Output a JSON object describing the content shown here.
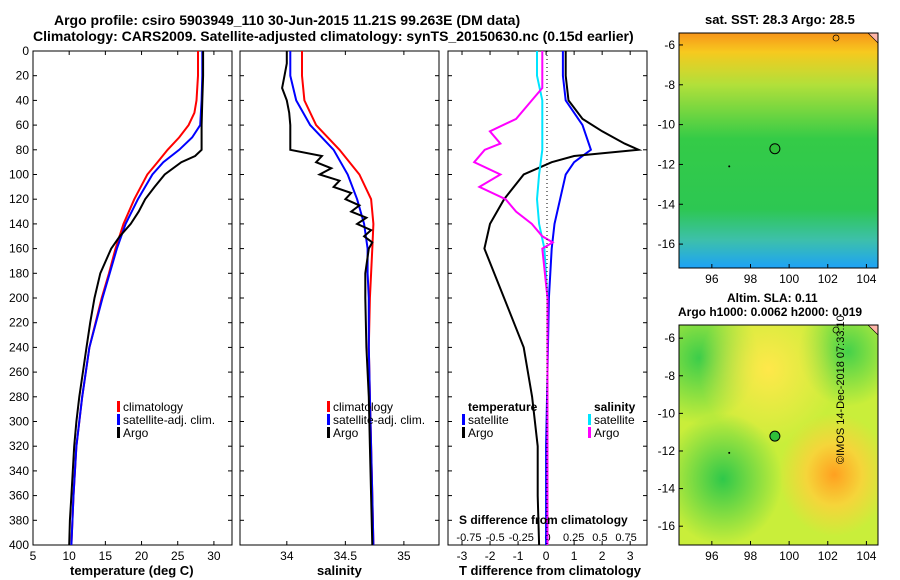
{
  "header": {
    "line1": "Argo profile: csiro 5903949_110 30-Jun-2015 11.21S 99.263E (DM data)",
    "line2": "Climatology: CARS2009. Satellite-adjusted climatology: synTS_20150630.nc (0.15d earlier)"
  },
  "depth_axis": {
    "ticks": [
      "0",
      "20",
      "40",
      "60",
      "80",
      "100",
      "120",
      "140",
      "160",
      "180",
      "200",
      "220",
      "240",
      "260",
      "280",
      "300",
      "320",
      "340",
      "360",
      "380",
      "400"
    ]
  },
  "colors": {
    "climatology": "#ff0000",
    "satellite": "#0000ff",
    "argo": "#000000",
    "sat_diff_s": "#00e5ff",
    "argo_diff_s": "#ff00ff"
  },
  "chart_data": [
    {
      "type": "line",
      "id": "temperature",
      "xlabel": "temperature (deg C)",
      "ylabel": "",
      "xlim": [
        5,
        32.5
      ],
      "ylim": [
        400,
        0
      ],
      "xticks": [
        5,
        10,
        15,
        20,
        25,
        30
      ],
      "xtick_labels": [
        "5",
        "10",
        "15",
        "20",
        "25",
        "30"
      ],
      "legend": [
        "climatology",
        "satellite-adj. clim.",
        "Argo"
      ],
      "series": [
        {
          "name": "climatology",
          "color": "#ff0000",
          "depth": [
            0,
            20,
            40,
            50,
            60,
            70,
            80,
            90,
            100,
            120,
            140,
            160,
            180,
            200,
            240,
            280,
            320,
            360,
            400
          ],
          "values": [
            27.8,
            27.8,
            27.6,
            27.3,
            26.5,
            25.2,
            23.6,
            22.2,
            20.8,
            19.0,
            17.5,
            16.4,
            15.5,
            14.5,
            12.8,
            11.8,
            11.0,
            10.6,
            10.3
          ]
        },
        {
          "name": "satellite-adj. clim.",
          "color": "#0000ff",
          "depth": [
            0,
            20,
            40,
            60,
            70,
            80,
            90,
            100,
            120,
            140,
            160,
            180,
            200,
            240,
            280,
            320,
            360,
            400
          ],
          "values": [
            28.4,
            28.4,
            28.3,
            28.1,
            27.0,
            25.2,
            23.0,
            21.5,
            19.5,
            17.8,
            16.6,
            15.6,
            14.6,
            12.8,
            11.8,
            11.0,
            10.6,
            10.3
          ]
        },
        {
          "name": "Argo",
          "color": "#000000",
          "depth": [
            0,
            20,
            40,
            60,
            70,
            80,
            85,
            90,
            100,
            110,
            120,
            130,
            140,
            150,
            160,
            180,
            200,
            220,
            240,
            260,
            280,
            300,
            320,
            340,
            360,
            380,
            400
          ],
          "values": [
            28.5,
            28.5,
            28.4,
            28.3,
            28.3,
            28.3,
            27.4,
            25.5,
            23.2,
            21.8,
            20.5,
            19.6,
            18.5,
            17.0,
            15.8,
            14.3,
            13.5,
            12.9,
            12.4,
            11.9,
            11.4,
            11.0,
            10.7,
            10.5,
            10.3,
            10.1,
            10.0
          ]
        }
      ]
    },
    {
      "type": "line",
      "id": "salinity",
      "xlabel": "salinity",
      "ylabel": "",
      "xlim": [
        33.6,
        35.3
      ],
      "ylim": [
        400,
        0
      ],
      "xticks": [
        34,
        34.5,
        35
      ],
      "xtick_labels": [
        "34",
        "34.5",
        "35"
      ],
      "legend": [
        "climatology",
        "satellite-adj. clim.",
        "Argo"
      ],
      "series": [
        {
          "name": "climatology",
          "color": "#ff0000",
          "depth": [
            0,
            20,
            40,
            60,
            80,
            100,
            120,
            140,
            160,
            180,
            200,
            240,
            280,
            320,
            360,
            400
          ],
          "values": [
            34.13,
            34.13,
            34.15,
            34.25,
            34.45,
            34.62,
            34.72,
            34.74,
            34.73,
            34.72,
            34.71,
            34.7,
            34.71,
            34.72,
            34.73,
            34.74
          ]
        },
        {
          "name": "satellite-adj. clim.",
          "color": "#0000ff",
          "depth": [
            0,
            20,
            40,
            60,
            80,
            100,
            120,
            140,
            160,
            180,
            200,
            240,
            280,
            320,
            360,
            400
          ],
          "values": [
            34.03,
            34.03,
            34.08,
            34.2,
            34.4,
            34.52,
            34.6,
            34.66,
            34.69,
            34.69,
            34.7,
            34.7,
            34.71,
            34.72,
            34.73,
            34.74
          ]
        },
        {
          "name": "Argo",
          "color": "#000000",
          "depth": [
            0,
            10,
            20,
            30,
            40,
            50,
            60,
            70,
            80,
            85,
            90,
            95,
            100,
            105,
            110,
            115,
            120,
            125,
            130,
            135,
            140,
            145,
            150,
            155,
            160,
            180,
            200,
            240,
            280,
            320,
            360,
            400
          ],
          "values": [
            34.0,
            34.0,
            33.98,
            33.96,
            34.0,
            34.02,
            34.03,
            34.03,
            34.03,
            34.3,
            34.25,
            34.38,
            34.28,
            34.45,
            34.4,
            34.55,
            34.5,
            34.62,
            34.55,
            34.68,
            34.6,
            34.72,
            34.66,
            34.73,
            34.7,
            34.67,
            34.67,
            34.68,
            34.7,
            34.71,
            34.72,
            34.73
          ]
        }
      ]
    },
    {
      "type": "line",
      "id": "difference",
      "xlabel": "T difference from climatology",
      "top_xlabel": "S difference from climatology",
      "xlim": [
        -3.5,
        3.6
      ],
      "ylim": [
        400,
        0
      ],
      "xticks": [
        -3,
        -2,
        -1,
        0,
        1,
        2,
        3
      ],
      "xtick_labels": [
        "-3",
        "-2",
        "-1",
        "0",
        "1",
        "2",
        "3"
      ],
      "s_xticks": [
        -0.75,
        -0.5,
        -0.25,
        0,
        0.25,
        0.5,
        0.75
      ],
      "s_xtick_labels": [
        "-0.75",
        "-0.5",
        "-0.25",
        "0",
        "0.25",
        "0.5",
        "0.75"
      ],
      "legend_title_t": "temperature",
      "legend_title_s": "salinity",
      "legend_t": [
        "satellite",
        "Argo"
      ],
      "legend_s": [
        "satellite",
        "Argo"
      ],
      "series": [
        {
          "name": "T satellite",
          "color": "#0000ff",
          "depth": [
            0,
            20,
            40,
            60,
            80,
            90,
            100,
            120,
            140,
            160,
            200,
            260,
            320,
            400
          ],
          "values": [
            0.6,
            0.6,
            0.7,
            1.3,
            1.6,
            1.0,
            0.7,
            0.5,
            0.3,
            0.2,
            0.1,
            0.05,
            0.0,
            0.0
          ]
        },
        {
          "name": "T Argo",
          "color": "#000000",
          "depth": [
            0,
            20,
            40,
            55,
            65,
            75,
            80,
            85,
            90,
            100,
            120,
            140,
            160,
            200,
            240,
            280,
            320,
            360,
            400
          ],
          "values": [
            0.7,
            0.7,
            0.8,
            1.3,
            2.0,
            2.8,
            3.3,
            1.0,
            0.2,
            -0.8,
            -1.5,
            -2.0,
            -2.2,
            -1.5,
            -0.8,
            -0.5,
            -0.3,
            -0.3,
            -0.25
          ]
        },
        {
          "name": "S satellite",
          "color": "#00e5ff",
          "depth": [
            0,
            20,
            40,
            60,
            80,
            100,
            120,
            140,
            160,
            200,
            260,
            320,
            400
          ],
          "values": [
            -0.1,
            -0.1,
            -0.05,
            -0.05,
            -0.05,
            -0.08,
            -0.1,
            -0.08,
            -0.03,
            0.0,
            0.0,
            0.0,
            0.0
          ]
        },
        {
          "name": "S Argo",
          "color": "#ff00ff",
          "depth": [
            0,
            30,
            40,
            55,
            65,
            75,
            80,
            90,
            100,
            110,
            120,
            130,
            140,
            150,
            155,
            160,
            200,
            260,
            320,
            400
          ],
          "values": [
            -0.05,
            -0.05,
            -0.15,
            -0.3,
            -0.55,
            -0.45,
            -0.6,
            -0.7,
            -0.45,
            -0.65,
            -0.4,
            -0.3,
            -0.15,
            -0.05,
            0.05,
            -0.05,
            0.0,
            0.0,
            0.0,
            0.0
          ]
        }
      ]
    }
  ],
  "maps": {
    "sst": {
      "title": "sat. SST: 28.3 Argo: 28.5",
      "xticks": [
        "96",
        "98",
        "100",
        "102",
        "104"
      ],
      "yticks": [
        "-6",
        "-8",
        "-10",
        "-12",
        "-14",
        "-16"
      ],
      "argo_lon": 99.263,
      "argo_lat": -11.21
    },
    "sla": {
      "title1": "Altim. SLA: 0.11",
      "title2": "Argo h1000: 0.0062 h2000: 0.019",
      "xticks": [
        "96",
        "98",
        "100",
        "102",
        "104"
      ],
      "yticks": [
        "-6",
        "-8",
        "-10",
        "-12",
        "-14",
        "-16"
      ],
      "argo_lon": 99.263,
      "argo_lat": -11.21
    }
  },
  "credit": "©IMOS 14-Dec-2018 07:33:10"
}
